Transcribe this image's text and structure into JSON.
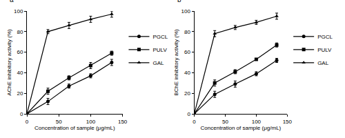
{
  "chart_data": [
    {
      "type": "line",
      "title": "a",
      "x_label": "Concentration of sample (μg/mL)",
      "y_label": "AChE inhibitory activity (%)",
      "x": [
        0,
        33,
        66,
        100,
        133
      ],
      "series": [
        {
          "name": "PGCL",
          "color": "#000000",
          "marker": "circle",
          "values": [
            0,
            12,
            27,
            37,
            50
          ],
          "errors": [
            0,
            3,
            2,
            2,
            3
          ]
        },
        {
          "name": "PULV",
          "color": "#000000",
          "marker": "square",
          "values": [
            0,
            22,
            35,
            47,
            59
          ],
          "errors": [
            0,
            3,
            2,
            3,
            2
          ]
        },
        {
          "name": "GAL",
          "color": "#000000",
          "marker": "triangle",
          "values": [
            0,
            80,
            86,
            92,
            97
          ],
          "errors": [
            0,
            2,
            3,
            3,
            3
          ]
        }
      ],
      "xlim": [
        0,
        150
      ],
      "xticks": [
        0,
        50,
        100,
        150
      ],
      "ylim": [
        0,
        100
      ],
      "yticks": [
        0,
        20,
        40,
        60,
        80,
        100
      ],
      "grid": false,
      "legend": "right"
    },
    {
      "type": "line",
      "title": "b",
      "x_label": "Concentration of sample (μg/mL)",
      "y_label": "BChE inhibitory activity (%)",
      "x": [
        0,
        33,
        66,
        100,
        133
      ],
      "series": [
        {
          "name": "PGCL",
          "color": "#000000",
          "marker": "circle",
          "values": [
            0,
            19,
            29,
            39,
            52
          ],
          "errors": [
            0,
            3,
            3,
            2,
            2
          ]
        },
        {
          "name": "PULV",
          "color": "#000000",
          "marker": "square",
          "values": [
            0,
            30,
            41,
            53,
            67
          ],
          "errors": [
            0,
            3,
            2,
            1,
            2
          ]
        },
        {
          "name": "GAL",
          "color": "#000000",
          "marker": "triangle",
          "values": [
            0,
            78,
            84,
            89,
            95
          ],
          "errors": [
            0,
            3,
            2,
            2,
            3
          ]
        }
      ],
      "xlim": [
        0,
        150
      ],
      "xticks": [
        0,
        50,
        100,
        150
      ],
      "ylim": [
        0,
        100
      ],
      "yticks": [
        0,
        20,
        40,
        60,
        80,
        100
      ],
      "grid": false,
      "legend": "right"
    }
  ]
}
